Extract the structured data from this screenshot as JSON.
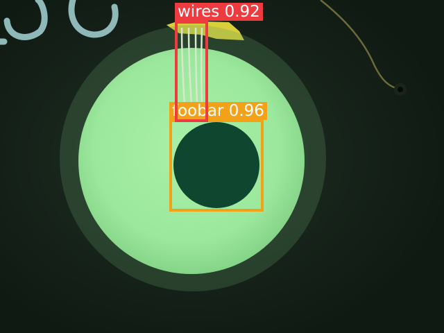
{
  "colors": {
    "background": "#0f1a12",
    "board_glow": "#243428",
    "lens_halo": "#5e9a66",
    "lens_face": "#9be89c",
    "lens_center": "#a9f0a7",
    "hole": "#0f4630",
    "pad": "#d8cf3a",
    "wire": "#d7e6cc",
    "silkscreen": "#8fb8b8",
    "trace": "#6e6a3a"
  },
  "detections": [
    {
      "label": "foobar",
      "score": "0.96",
      "text": "foobar 0.96",
      "color": "#f4a11a"
    },
    {
      "label": "wires",
      "score": "0.92",
      "text": "wires 0.92",
      "color": "#ee3b3f"
    }
  ]
}
